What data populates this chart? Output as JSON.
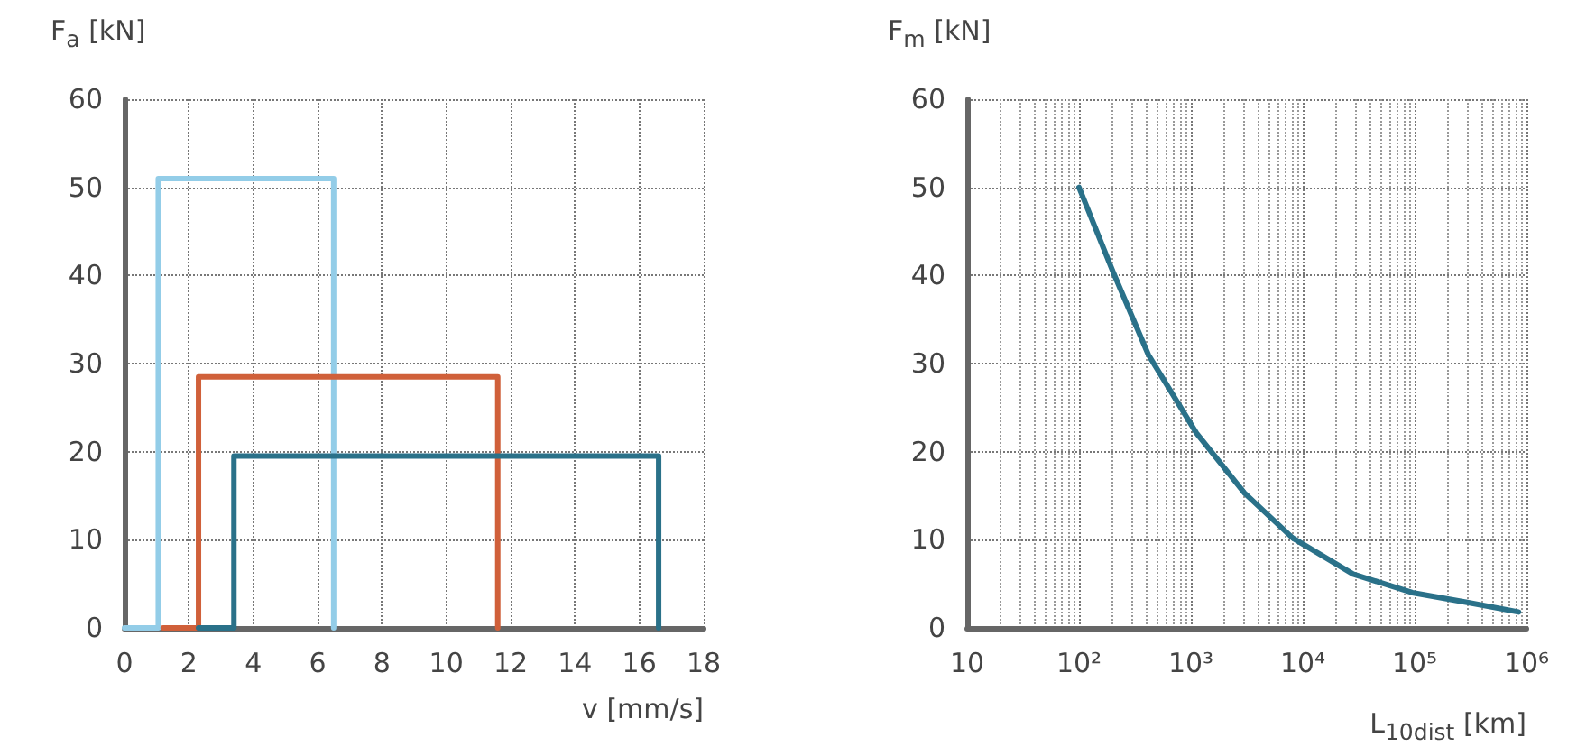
{
  "chart_data": [
    {
      "type": "line",
      "ylabel": "F$_{a}$ [kN]",
      "xlabel": "v [mm/s]",
      "xlim": [
        0,
        18
      ],
      "xticks": [
        0,
        2,
        4,
        6,
        8,
        10,
        12,
        14,
        16,
        18
      ],
      "ylim": [
        0,
        60
      ],
      "yticks": [
        0,
        10,
        20,
        30,
        40,
        50,
        60
      ],
      "grid": true,
      "line_style": "solid",
      "series": [
        {
          "color": "#93cde8",
          "x": [
            0,
            1.05,
            1.05,
            6.5,
            6.5
          ],
          "values": [
            0,
            0,
            51,
            51,
            0
          ]
        },
        {
          "color": "#d0603a",
          "x": [
            1.2,
            2.3,
            2.3,
            11.6,
            11.6
          ],
          "values": [
            0,
            0,
            28.5,
            28.5,
            0
          ]
        },
        {
          "color": "#2a7189",
          "x": [
            2.3,
            3.4,
            3.4,
            16.6,
            16.6
          ],
          "values": [
            0,
            0,
            19.5,
            19.5,
            0
          ]
        }
      ]
    },
    {
      "type": "line",
      "ylabel": "F$_{m}$ [kN]",
      "xlabel": "L$_{10dist}$ [km]",
      "log": "x",
      "xlim": [
        10,
        1000000
      ],
      "xticks": [
        10,
        {
          "value": 100,
          "label": "10²"
        },
        {
          "value": 1000,
          "label": "10³"
        },
        {
          "value": 10000,
          "label": "10⁴"
        },
        {
          "value": 100000,
          "label": "10⁵"
        },
        {
          "value": 1000000,
          "label": "10⁶"
        }
      ],
      "ylim": [
        0,
        60
      ],
      "yticks": [
        0,
        10,
        20,
        30,
        40,
        50,
        60
      ],
      "grid": true,
      "line_style": "solid",
      "series": [
        {
          "color": "#2a7189",
          "x": [
            100,
            200,
            417,
            1122,
            3020,
            8130,
            28200,
            95500,
            295000,
            850000
          ],
          "values": [
            50,
            40.5,
            31,
            22.1,
            15.3,
            10.2,
            6.1,
            4,
            2.9,
            1.8
          ]
        }
      ]
    }
  ]
}
